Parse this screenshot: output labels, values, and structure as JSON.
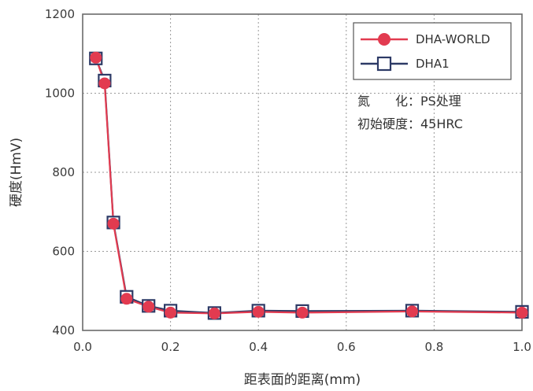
{
  "chart_data": {
    "type": "line",
    "xlabel": "距表面的距离(mm)",
    "ylabel": "硬度(HmV)",
    "xlim": [
      0.0,
      1.0
    ],
    "ylim": [
      400,
      1200
    ],
    "x_ticks": [
      "0.0",
      "0.2",
      "0.4",
      "0.6",
      "0.8",
      "1.0"
    ],
    "y_ticks": [
      "400",
      "600",
      "800",
      "1000",
      "1200"
    ],
    "grid": "dotted",
    "legend_position": "top-right",
    "series": [
      {
        "name": "DHA-WORLD",
        "marker": "circle",
        "color": "#e23b50",
        "x": [
          0.03,
          0.05,
          0.07,
          0.1,
          0.15,
          0.2,
          0.3,
          0.4,
          0.5,
          0.75,
          1.0
        ],
        "y": [
          1090,
          1025,
          670,
          480,
          460,
          445,
          443,
          447,
          445,
          448,
          445
        ]
      },
      {
        "name": "DHA1",
        "marker": "square",
        "color": "#2d3a66",
        "x": [
          0.03,
          0.05,
          0.07,
          0.1,
          0.15,
          0.2,
          0.3,
          0.4,
          0.5,
          0.75,
          1.0
        ],
        "y": [
          1088,
          1032,
          673,
          485,
          462,
          450,
          444,
          450,
          449,
          450,
          447
        ]
      }
    ],
    "annotations": [
      "氮　　化：PS处理",
      "初始硬度：45HRC"
    ]
  }
}
